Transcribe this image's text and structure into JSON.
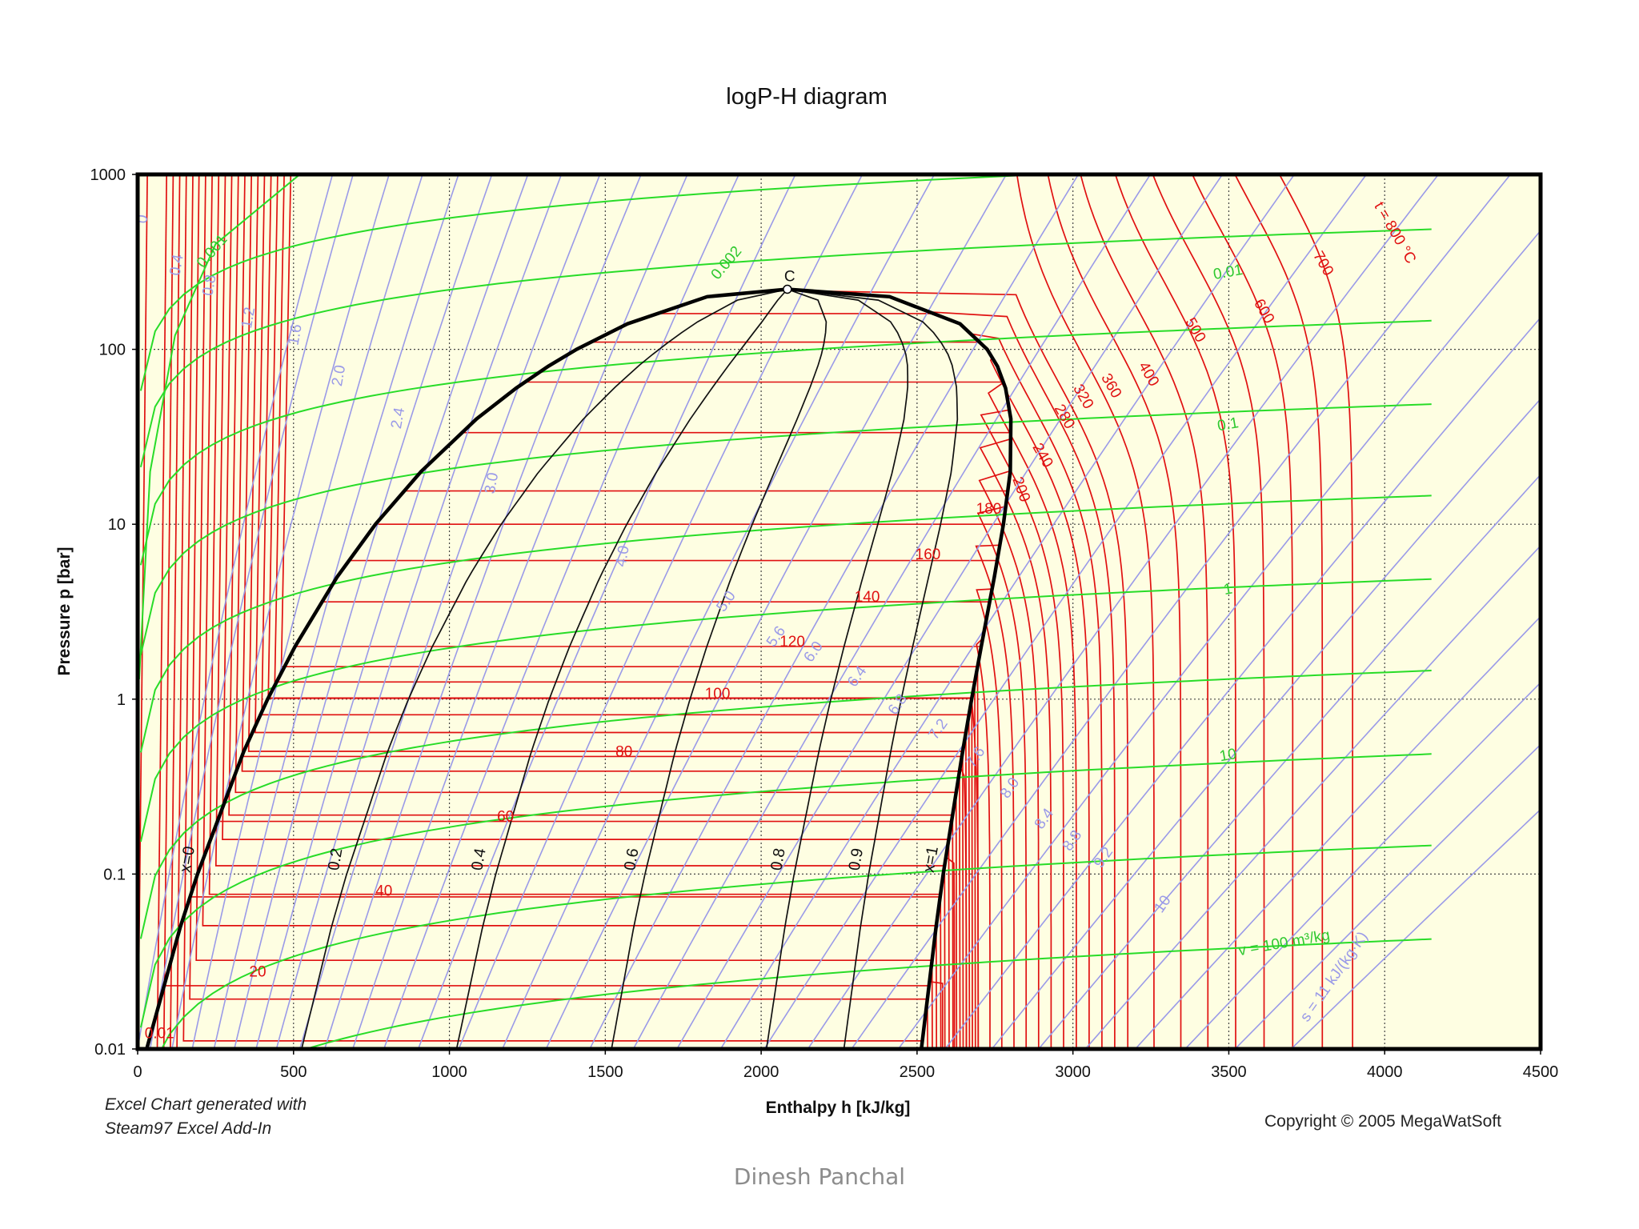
{
  "chart_data": {
    "type": "line",
    "title": "logP-H diagram",
    "xlabel": "Enthalpy h [kJ/kg]",
    "ylabel": "Pressure p [bar]",
    "xlim": [
      0,
      4500
    ],
    "ylim": [
      0.01,
      1000
    ],
    "yscale": "log",
    "x_ticks": [
      "0",
      "500",
      "1000",
      "1500",
      "2000",
      "2500",
      "3000",
      "3500",
      "4000",
      "4500"
    ],
    "y_ticks": [
      "0.01",
      "0.1",
      "1",
      "10",
      "100",
      "1000"
    ],
    "grid": true,
    "critical_point": {
      "label": "C",
      "h": 2084,
      "p": 220.6
    },
    "saturation_liquid": [
      [
        29,
        0.01
      ],
      [
        137,
        0.05
      ],
      [
        192,
        0.1
      ],
      [
        340,
        0.5
      ],
      [
        417,
        1
      ],
      [
        505,
        2
      ],
      [
        640,
        5
      ],
      [
        763,
        10
      ],
      [
        909,
        20
      ],
      [
        1087,
        40
      ],
      [
        1214,
        60
      ],
      [
        1317,
        80
      ],
      [
        1408,
        100
      ],
      [
        1571,
        140
      ],
      [
        1827,
        200
      ],
      [
        2084,
        220.6
      ]
    ],
    "saturation_vapor": [
      [
        2514,
        0.01
      ],
      [
        2561,
        0.05
      ],
      [
        2584,
        0.1
      ],
      [
        2646,
        0.5
      ],
      [
        2675,
        1
      ],
      [
        2706,
        2
      ],
      [
        2748,
        5
      ],
      [
        2777,
        10
      ],
      [
        2799,
        20
      ],
      [
        2801,
        40
      ],
      [
        2784,
        60
      ],
      [
        2758,
        80
      ],
      [
        2725,
        100
      ],
      [
        2638,
        140
      ],
      [
        2412,
        200
      ],
      [
        2084,
        220.6
      ]
    ],
    "quality_lines": [
      {
        "label": "x=0",
        "q": 0
      },
      {
        "label": "0.2",
        "q": 0.2
      },
      {
        "label": "0.4",
        "q": 0.4
      },
      {
        "label": "0.6",
        "q": 0.6
      },
      {
        "label": "0.8",
        "q": 0.8
      },
      {
        "label": "0.9",
        "q": 0.9
      },
      {
        "label": "x=1",
        "q": 1
      }
    ],
    "isotherms_unit": "°C",
    "isotherm_labels": [
      {
        "text": "0.01",
        "h": 70,
        "p": 0.0115
      },
      {
        "text": "20",
        "h": 385,
        "p": 0.026
      },
      {
        "text": "40",
        "h": 790,
        "p": 0.075
      },
      {
        "text": "60",
        "h": 1180,
        "p": 0.2
      },
      {
        "text": "80",
        "h": 1560,
        "p": 0.47
      },
      {
        "text": "100",
        "h": 1860,
        "p": 1.01
      },
      {
        "text": "120",
        "h": 2100,
        "p": 2.0
      },
      {
        "text": "140",
        "h": 2340,
        "p": 3.6
      },
      {
        "text": "160",
        "h": 2535,
        "p": 6.3
      },
      {
        "text": "180",
        "h": 2730,
        "p": 11.5
      },
      {
        "text": "200",
        "h": 2820,
        "p": 15.5
      },
      {
        "text": "240",
        "h": 2890,
        "p": 24
      },
      {
        "text": "280",
        "h": 2960,
        "p": 40
      },
      {
        "text": "320",
        "h": 3020,
        "p": 52
      },
      {
        "text": "360",
        "h": 3110,
        "p": 60
      },
      {
        "text": "400",
        "h": 3230,
        "p": 70
      },
      {
        "text": "500",
        "h": 3380,
        "p": 125
      },
      {
        "text": "600",
        "h": 3600,
        "p": 160
      },
      {
        "text": "700",
        "h": 3790,
        "p": 300
      },
      {
        "text": "t = 800 °C",
        "h": 4020,
        "p": 450
      }
    ],
    "isotherm_lines_h_at_low_p": [
      1,
      63,
      84,
      105,
      126,
      147,
      167,
      188,
      209,
      230,
      251,
      272,
      293,
      314,
      335,
      356,
      377,
      398,
      419,
      440,
      461,
      2544,
      2582,
      2620,
      2658,
      2696,
      2734,
      2772,
      2811,
      2850,
      2890,
      2930,
      2970,
      3011,
      3052,
      3093,
      3134,
      3176,
      3260,
      3346,
      3433,
      3522,
      3613,
      3705,
      3800,
      3897
    ],
    "isentrope_labels": [
      {
        "text": "0",
        "h": 30,
        "p": 550
      },
      {
        "text": "0.4",
        "h": 140,
        "p": 300
      },
      {
        "text": "0.8",
        "h": 245,
        "p": 230
      },
      {
        "text": "1.2",
        "h": 370,
        "p": 150
      },
      {
        "text": "1.6",
        "h": 520,
        "p": 120
      },
      {
        "text": "2.0",
        "h": 660,
        "p": 70
      },
      {
        "text": "2.4",
        "h": 850,
        "p": 40
      },
      {
        "text": "3.0",
        "h": 1150,
        "p": 17
      },
      {
        "text": "4.0",
        "h": 1570,
        "p": 6.5
      },
      {
        "text": "5.0",
        "h": 1900,
        "p": 3.5
      },
      {
        "text": "5.6",
        "h": 2060,
        "p": 2.2
      },
      {
        "text": "6.0",
        "h": 2180,
        "p": 1.8
      },
      {
        "text": "6.4",
        "h": 2320,
        "p": 1.3
      },
      {
        "text": "6.8",
        "h": 2450,
        "p": 0.9
      },
      {
        "text": "7.2",
        "h": 2580,
        "p": 0.65
      },
      {
        "text": "7.6",
        "h": 2700,
        "p": 0.45
      },
      {
        "text": "8.0",
        "h": 2810,
        "p": 0.3
      },
      {
        "text": "8.4",
        "h": 2920,
        "p": 0.2
      },
      {
        "text": "8.8",
        "h": 3010,
        "p": 0.15
      },
      {
        "text": "9.2",
        "h": 3110,
        "p": 0.12
      },
      {
        "text": "10",
        "h": 3300,
        "p": 0.065
      },
      {
        "text": "s = 11 kJ/(kg·K)",
        "h": 3850,
        "p": 0.025
      }
    ],
    "isochore_labels": [
      {
        "text": "0.001",
        "h": 250,
        "p": 350
      },
      {
        "text": "0.002",
        "h": 1900,
        "p": 300
      },
      {
        "text": "0.01",
        "h": 3500,
        "p": 260
      },
      {
        "text": "0.1",
        "h": 3500,
        "p": 35
      },
      {
        "text": "1",
        "h": 3500,
        "p": 4
      },
      {
        "text": "10",
        "h": 3500,
        "p": 0.45
      },
      {
        "text": "v = 100 m³/kg",
        "h": 3680,
        "p": 0.038
      }
    ]
  },
  "notes": {
    "generated_line1": "Excel Chart generated with",
    "generated_line2": "Steam97 Excel Add-In",
    "copyright": "Copyright © 2005 MegaWatSoft"
  },
  "footer": {
    "author": "Dinesh Panchal"
  },
  "colors": {
    "plot_background": "#fefee2",
    "isotherm": "#e01010",
    "isentrope": "#9a9ae8",
    "isochore": "#28dc28",
    "saturation": "#000000"
  }
}
